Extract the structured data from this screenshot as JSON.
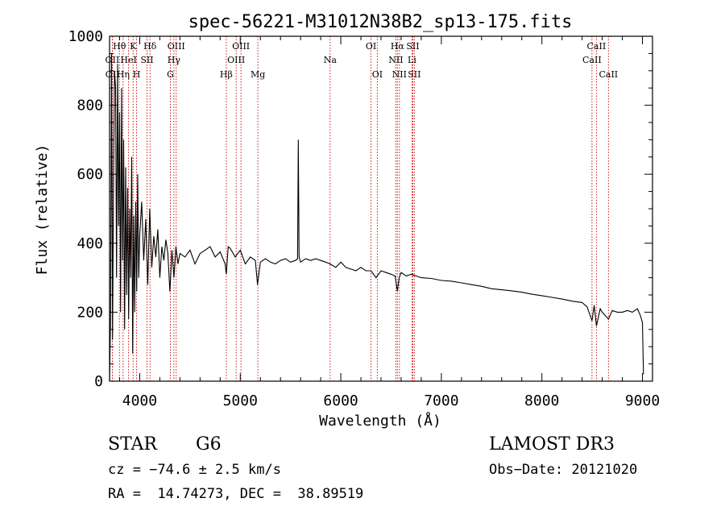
{
  "chart_data": {
    "type": "line",
    "title": "spec-56221-M31012N38B2_sp13-175.fits",
    "xlabel": "Wavelength (Å)",
    "ylabel": "Flux (relative)",
    "xlim": [
      3700,
      9100
    ],
    "ylim": [
      0,
      1000
    ],
    "xticks": [
      4000,
      5000,
      6000,
      7000,
      8000,
      9000
    ],
    "yticks": [
      0,
      200,
      400,
      600,
      800,
      1000
    ],
    "xtick_labels": [
      "4000",
      "5000",
      "6000",
      "7000",
      "8000",
      "9000"
    ],
    "ytick_labels": [
      "0",
      "200",
      "400",
      "600",
      "800",
      "1000"
    ],
    "grid": false,
    "series": [
      {
        "name": "spectrum",
        "x": [
          3700,
          3710,
          3720,
          3730,
          3740,
          3750,
          3760,
          3770,
          3780,
          3790,
          3800,
          3810,
          3820,
          3830,
          3840,
          3850,
          3860,
          3870,
          3880,
          3890,
          3900,
          3910,
          3920,
          3930,
          3940,
          3950,
          3960,
          3970,
          3980,
          3990,
          4000,
          4020,
          4040,
          4060,
          4080,
          4100,
          4120,
          4140,
          4160,
          4180,
          4200,
          4220,
          4240,
          4260,
          4280,
          4300,
          4320,
          4340,
          4360,
          4380,
          4400,
          4450,
          4500,
          4550,
          4600,
          4650,
          4700,
          4750,
          4800,
          4850,
          4861,
          4880,
          4900,
          4950,
          5000,
          5050,
          5100,
          5150,
          5172,
          5200,
          5250,
          5300,
          5350,
          5400,
          5450,
          5500,
          5550,
          5570,
          5577,
          5585,
          5600,
          5650,
          5700,
          5750,
          5800,
          5850,
          5893,
          5950,
          6000,
          6050,
          6100,
          6150,
          6200,
          6250,
          6300,
          6350,
          6400,
          6450,
          6500,
          6540,
          6563,
          6580,
          6600,
          6650,
          6700,
          6750,
          6800,
          6900,
          7000,
          7100,
          7200,
          7300,
          7400,
          7500,
          7600,
          7700,
          7800,
          7900,
          8000,
          8100,
          8200,
          8300,
          8400,
          8450,
          8498,
          8520,
          8542,
          8580,
          8600,
          8662,
          8700,
          8750,
          8800,
          8850,
          8900,
          8950,
          8980,
          9000,
          9010
        ],
        "values": [
          0,
          180,
          950,
          120,
          600,
          900,
          850,
          300,
          920,
          450,
          780,
          200,
          850,
          350,
          700,
          150,
          620,
          250,
          560,
          180,
          500,
          300,
          650,
          80,
          480,
          200,
          520,
          260,
          600,
          300,
          420,
          520,
          350,
          470,
          280,
          500,
          330,
          420,
          360,
          440,
          300,
          390,
          350,
          410,
          370,
          260,
          380,
          300,
          390,
          340,
          370,
          360,
          380,
          340,
          370,
          380,
          390,
          360,
          375,
          340,
          310,
          390,
          385,
          360,
          380,
          340,
          360,
          350,
          280,
          345,
          355,
          345,
          340,
          350,
          355,
          345,
          350,
          355,
          700,
          360,
          345,
          355,
          350,
          355,
          350,
          345,
          340,
          330,
          345,
          330,
          325,
          320,
          330,
          320,
          320,
          300,
          320,
          315,
          310,
          305,
          260,
          300,
          315,
          305,
          310,
          305,
          300,
          298,
          292,
          290,
          285,
          280,
          275,
          268,
          265,
          262,
          258,
          252,
          248,
          243,
          238,
          232,
          228,
          215,
          175,
          220,
          160,
          210,
          200,
          180,
          205,
          200,
          200,
          205,
          200,
          210,
          190,
          170,
          20
        ]
      }
    ],
    "line_markers": [
      {
        "label": "Hθ",
        "wavelength": 3798,
        "row": 0
      },
      {
        "label": "OII",
        "wavelength": 3727,
        "row": 1
      },
      {
        "label": "OII",
        "wavelength": 3729,
        "row": 2
      },
      {
        "label": "Hη",
        "wavelength": 3835,
        "row": 2
      },
      {
        "label": "K",
        "wavelength": 3934,
        "row": 0
      },
      {
        "label": "HeI",
        "wavelength": 3889,
        "row": 1
      },
      {
        "label": "H",
        "wavelength": 3969,
        "row": 2
      },
      {
        "label": "SII",
        "wavelength": 4072,
        "row": 1
      },
      {
        "label": "Hδ",
        "wavelength": 4102,
        "row": 0
      },
      {
        "label": "OIII",
        "wavelength": 4363,
        "row": 0
      },
      {
        "label": "Hγ",
        "wavelength": 4340,
        "row": 1
      },
      {
        "label": "G",
        "wavelength": 4305,
        "row": 2
      },
      {
        "label": "OIII",
        "wavelength": 5007,
        "row": 0
      },
      {
        "label": "OIII",
        "wavelength": 4959,
        "row": 1
      },
      {
        "label": "Hβ",
        "wavelength": 4861,
        "row": 2
      },
      {
        "label": "Mg",
        "wavelength": 5175,
        "row": 2
      },
      {
        "label": "Na",
        "wavelength": 5894,
        "row": 1
      },
      {
        "label": "OI",
        "wavelength": 6300,
        "row": 0
      },
      {
        "label": "OI",
        "wavelength": 6363,
        "row": 2
      },
      {
        "label": "Hα",
        "wavelength": 6563,
        "row": 0
      },
      {
        "label": "SII",
        "wavelength": 6716,
        "row": 0
      },
      {
        "label": "NII",
        "wavelength": 6548,
        "row": 1
      },
      {
        "label": "Li",
        "wavelength": 6708,
        "row": 1
      },
      {
        "label": "NII",
        "wavelength": 6583,
        "row": 2
      },
      {
        "label": "SII",
        "wavelength": 6731,
        "row": 2
      },
      {
        "label": "CaII",
        "wavelength": 8542,
        "row": 0
      },
      {
        "label": "CaII",
        "wavelength": 8498,
        "row": 1
      },
      {
        "label": "CaII",
        "wavelength": 8662,
        "row": 2
      }
    ]
  },
  "info": {
    "object_class": "STAR",
    "subclass": "G6",
    "survey": "LAMOST DR3",
    "redshift_line": "cz = −74.6 ± 2.5 km/s",
    "obs_date": "Obs−Date: 20121020",
    "coords": "RA =  14.74273, DEC =  38.89519"
  },
  "colors": {
    "axis": "#000000",
    "spectrum": "#000000",
    "marker_line": "#cc0000",
    "background": "#ffffff"
  }
}
